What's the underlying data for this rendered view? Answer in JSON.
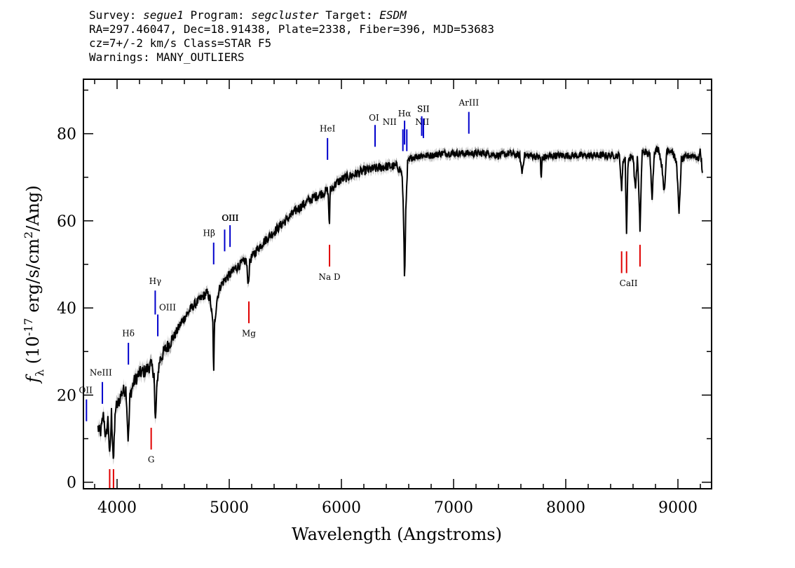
{
  "header": {
    "survey_label": "Survey:",
    "survey": "segue1",
    "program_label": "Program:",
    "program": "segcluster",
    "target_label": "Target:",
    "target": "ESDM",
    "line2": "RA=297.46047, Dec=18.91438, Plate=2338, Fiber=396, MJD=53683",
    "cz": "cz=7+/-2 km/s Class=STAR F5",
    "warnings": "Warnings: MANY_OUTLIERS"
  },
  "colors": {
    "spectrum": "#000000",
    "error_band": "#b4b4b4",
    "emission": "#0000cc",
    "absorption": "#e00000"
  },
  "chart_data": {
    "type": "line",
    "xlabel": "Wavelength (Angstroms)",
    "ylabel": "f_λ (10^-17 erg/s/cm^2/Ang)",
    "xlim": [
      3700,
      9300
    ],
    "ylim": [
      -1.5,
      92.5
    ],
    "xticks": [
      4000,
      5000,
      6000,
      7000,
      8000,
      9000
    ],
    "yticks": [
      0,
      20,
      40,
      60,
      80
    ],
    "grid": false,
    "spectrum": [
      [
        3830,
        12.5
      ],
      [
        3850,
        11
      ],
      [
        3880,
        15.5
      ],
      [
        3900,
        9.5
      ],
      [
        3920,
        15
      ],
      [
        3935,
        5
      ],
      [
        3950,
        16
      ],
      [
        3968,
        4.5
      ],
      [
        3985,
        17
      ],
      [
        4010,
        18
      ],
      [
        4040,
        20.5
      ],
      [
        4080,
        21.5
      ],
      [
        4100,
        9
      ],
      [
        4115,
        20
      ],
      [
        4150,
        23
      ],
      [
        4200,
        25
      ],
      [
        4250,
        25.5
      ],
      [
        4300,
        27
      ],
      [
        4330,
        25
      ],
      [
        4340,
        13
      ],
      [
        4360,
        24
      ],
      [
        4380,
        28
      ],
      [
        4420,
        30
      ],
      [
        4470,
        32
      ],
      [
        4520,
        34
      ],
      [
        4570,
        36.5
      ],
      [
        4620,
        38.5
      ],
      [
        4680,
        40.5
      ],
      [
        4740,
        42
      ],
      [
        4800,
        43.5
      ],
      [
        4830,
        42
      ],
      [
        4855,
        36
      ],
      [
        4861,
        23
      ],
      [
        4868,
        36
      ],
      [
        4890,
        42
      ],
      [
        4920,
        45
      ],
      [
        4960,
        46.5
      ],
      [
        5000,
        47.5
      ],
      [
        5050,
        49
      ],
      [
        5100,
        50
      ],
      [
        5150,
        51
      ],
      [
        5170,
        45.5
      ],
      [
        5185,
        51
      ],
      [
        5250,
        53.5
      ],
      [
        5300,
        55
      ],
      [
        5400,
        57.5
      ],
      [
        5500,
        60
      ],
      [
        5600,
        62.5
      ],
      [
        5700,
        64.5
      ],
      [
        5800,
        66
      ],
      [
        5880,
        67
      ],
      [
        5893,
        58.5
      ],
      [
        5900,
        67
      ],
      [
        5950,
        68.5
      ],
      [
        6000,
        69.5
      ],
      [
        6100,
        70.5
      ],
      [
        6200,
        71.5
      ],
      [
        6300,
        72
      ],
      [
        6400,
        72.5
      ],
      [
        6500,
        72.5
      ],
      [
        6540,
        71
      ],
      [
        6555,
        60
      ],
      [
        6563,
        45.5
      ],
      [
        6572,
        60
      ],
      [
        6590,
        73
      ],
      [
        6620,
        74.5
      ],
      [
        6700,
        75
      ],
      [
        6800,
        75
      ],
      [
        6900,
        75.5
      ],
      [
        7000,
        75.5
      ],
      [
        7100,
        75.5
      ],
      [
        7200,
        75.5
      ],
      [
        7300,
        75.5
      ],
      [
        7400,
        75
      ],
      [
        7500,
        75.5
      ],
      [
        7590,
        75
      ],
      [
        7610,
        71
      ],
      [
        7630,
        75
      ],
      [
        7700,
        75
      ],
      [
        7775,
        74.5
      ],
      [
        7780,
        68.5
      ],
      [
        7790,
        74.5
      ],
      [
        7900,
        75
      ],
      [
        8000,
        75
      ],
      [
        8100,
        75
      ],
      [
        8200,
        75
      ],
      [
        8300,
        75
      ],
      [
        8400,
        75
      ],
      [
        8480,
        75
      ],
      [
        8498,
        66.5
      ],
      [
        8510,
        74
      ],
      [
        8530,
        74
      ],
      [
        8542,
        57
      ],
      [
        8555,
        74
      ],
      [
        8600,
        75
      ],
      [
        8620,
        67
      ],
      [
        8640,
        75
      ],
      [
        8662,
        58
      ],
      [
        8680,
        75.5
      ],
      [
        8700,
        76
      ],
      [
        8750,
        75
      ],
      [
        8770,
        65.5
      ],
      [
        8790,
        76
      ],
      [
        8830,
        76.5
      ],
      [
        8860,
        72
      ],
      [
        8880,
        66
      ],
      [
        8900,
        76.5
      ],
      [
        8950,
        76
      ],
      [
        8990,
        73
      ],
      [
        9010,
        61
      ],
      [
        9030,
        74
      ],
      [
        9100,
        75
      ],
      [
        9150,
        75
      ],
      [
        9180,
        74
      ],
      [
        9200,
        76
      ],
      [
        9220,
        71
      ]
    ],
    "emission_lines": [
      {
        "label": "OII",
        "x": 3727,
        "y1": 14,
        "y2": 19,
        "lx": 3720,
        "ly": 20.5
      },
      {
        "label": "NeIII",
        "x": 3869,
        "y1": 18,
        "y2": 23,
        "lx": 3855,
        "ly": 24.5
      },
      {
        "label": "Hδ",
        "x": 4101,
        "y1": 27,
        "y2": 32,
        "lx": 4101,
        "ly": 33.5
      },
      {
        "label": "Hγ",
        "x": 4340,
        "y1": 38.5,
        "y2": 44,
        "lx": 4340,
        "ly": 45.5
      },
      {
        "label": "OIII",
        "x": 4363,
        "y1": 33.5,
        "y2": 38.5,
        "lx": 4450,
        "ly": 39.5
      },
      {
        "label": "Hβ",
        "x": 4861,
        "y1": 50,
        "y2": 55,
        "lx": 4820,
        "ly": 56.5
      },
      {
        "label": "OIII",
        "x": 4959,
        "y1": 53,
        "y2": 58,
        "lx": 5010,
        "ly": 60
      },
      {
        "label": "OIII",
        "x": 5007,
        "y1": 54,
        "y2": 59,
        "lx": 5007,
        "ly": 60
      },
      {
        "label": "HeI",
        "x": 5876,
        "y1": 74,
        "y2": 79,
        "lx": 5876,
        "ly": 80.5
      },
      {
        "label": "OI",
        "x": 6300,
        "y1": 77,
        "y2": 82,
        "lx": 6290,
        "ly": 83
      },
      {
        "label": "NII",
        "x": 6548,
        "y1": 76,
        "y2": 81,
        "lx": 6430,
        "ly": 82
      },
      {
        "label": "Hα",
        "x": 6563,
        "y1": 77.5,
        "y2": 83,
        "lx": 6563,
        "ly": 84
      },
      {
        "label": "NII",
        "x": 6583,
        "y1": 76,
        "y2": 81,
        "lx": 6720,
        "ly": 82
      },
      {
        "label": "SII",
        "x": 6716,
        "y1": 79.5,
        "y2": 84,
        "lx": 6730,
        "ly": 85
      },
      {
        "label": "SII",
        "x": 6731,
        "y1": 79,
        "y2": 83.5,
        "lx": 6730,
        "ly": 85
      },
      {
        "label": "ArIII",
        "x": 7136,
        "y1": 80,
        "y2": 85,
        "lx": 7136,
        "ly": 86.5
      }
    ],
    "absorption_lines": [
      {
        "label": "",
        "x": 3934,
        "y1": -1.5,
        "y2": 3
      },
      {
        "label": "",
        "x": 3968,
        "y1": -1.5,
        "y2": 3
      },
      {
        "label": "G",
        "x": 4304,
        "y1": 7.5,
        "y2": 12.5,
        "lx": 4304,
        "ly": 4.5
      },
      {
        "label": "Mg",
        "x": 5175,
        "y1": 36.5,
        "y2": 41.5,
        "lx": 5175,
        "ly": 33.5
      },
      {
        "label": "Na D",
        "x": 5894,
        "y1": 49.5,
        "y2": 54.5,
        "lx": 5894,
        "ly": 46.5
      },
      {
        "label": "CaII",
        "x": 8498,
        "y1": 48,
        "y2": 53,
        "lx": 8560,
        "ly": 45
      },
      {
        "label": "",
        "x": 8542,
        "y1": 48,
        "y2": 53
      },
      {
        "label": "",
        "x": 8662,
        "y1": 49.5,
        "y2": 54.5
      }
    ]
  }
}
